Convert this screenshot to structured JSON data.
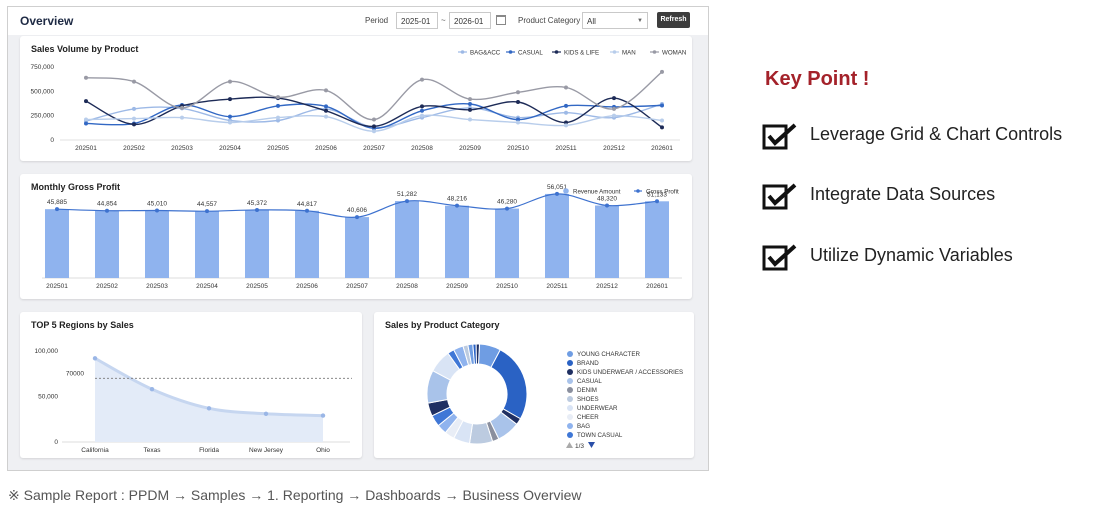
{
  "header": {
    "title": "Overview",
    "period_label": "Period",
    "period_from": "2025-01",
    "period_sep": "~",
    "period_to": "2026-01",
    "category_label": "Product Category",
    "category_value": "All",
    "refresh_label": "Refresh"
  },
  "sales_volume": {
    "title": "Sales Volume by Product",
    "chart_data": {
      "type": "line",
      "categories": [
        "202501",
        "202502",
        "202503",
        "202504",
        "202505",
        "202506",
        "202507",
        "202508",
        "202509",
        "202510",
        "202511",
        "202512",
        "202601"
      ],
      "y_ticks": [
        "750,000",
        "500,000",
        "250,000",
        "0"
      ],
      "ylim": [
        0,
        750000
      ],
      "legend_position": "top-right",
      "series": [
        {
          "name": "BAG&ACC",
          "color": "#9db9e6",
          "values": [
            195000,
            320000,
            325000,
            200000,
            200000,
            320000,
            130000,
            230000,
            330000,
            230000,
            280000,
            230000,
            370000
          ]
        },
        {
          "name": "CASUAL",
          "color": "#3268c4",
          "values": [
            170000,
            170000,
            360000,
            240000,
            350000,
            345000,
            120000,
            300000,
            370000,
            210000,
            350000,
            340000,
            355000
          ]
        },
        {
          "name": "KIDS & LIFE",
          "color": "#1d2b57",
          "values": [
            400000,
            160000,
            350000,
            420000,
            430000,
            300000,
            140000,
            345000,
            310000,
            390000,
            180000,
            430000,
            130000
          ]
        },
        {
          "name": "MAN",
          "color": "#b8cdeb",
          "values": [
            210000,
            220000,
            230000,
            180000,
            230000,
            240000,
            90000,
            250000,
            210000,
            180000,
            150000,
            250000,
            200000
          ]
        },
        {
          "name": "WOMAN",
          "color": "#999aa5",
          "values": [
            640000,
            600000,
            330000,
            600000,
            440000,
            510000,
            210000,
            620000,
            420000,
            490000,
            540000,
            320000,
            700000
          ]
        }
      ]
    }
  },
  "gross_profit": {
    "title": "Monthly Gross Profit",
    "chart_data": {
      "type": "bar",
      "categories": [
        "202501",
        "202502",
        "202503",
        "202504",
        "202505",
        "202506",
        "202507",
        "202508",
        "202509",
        "202510",
        "202511",
        "202512",
        "202601"
      ],
      "legend_position": "top-right",
      "ylim": [
        0,
        60000
      ],
      "series": [
        {
          "name": "Revenue Amount",
          "color": "#8fb3ee",
          "values": [
            45885,
            44854,
            45010,
            44557,
            45372,
            44817,
            40606,
            51282,
            48216,
            46280,
            56051,
            48320,
            51133
          ]
        },
        {
          "name": "Gross Profit",
          "color": "#3e72cf",
          "values": [
            45885,
            44854,
            45010,
            44557,
            45372,
            44817,
            40606,
            51282,
            48216,
            46280,
            56051,
            48320,
            51133
          ]
        }
      ],
      "data_labels": [
        "45,885",
        "44,854",
        "45,010",
        "44,557",
        "45,372",
        "44,817",
        "40,606",
        "51,282",
        "48,216",
        "46,280",
        "56,051",
        "48,320",
        "51,133"
      ]
    }
  },
  "top_regions": {
    "title": "TOP 5 Regions by Sales",
    "chart_data": {
      "type": "area",
      "categories": [
        "California",
        "Texas",
        "Florida",
        "New Jersey",
        "Ohio"
      ],
      "values": [
        92000,
        58000,
        37000,
        31000,
        29000
      ],
      "ylim": [
        0,
        100000
      ],
      "y_ticks": [
        "100,000",
        "50,000",
        "0"
      ],
      "reference_line": {
        "value": 70000,
        "label": "70000"
      }
    }
  },
  "product_category": {
    "title": "Sales by Product Category",
    "chart_data": {
      "type": "pie",
      "legend_position": "right",
      "legend": [
        {
          "name": "YOUNG CHARACTER",
          "color": "#6f9de3"
        },
        {
          "name": "BRAND",
          "color": "#2a62c4"
        },
        {
          "name": "KIDS UNDERWEAR / ACCESSORIES",
          "color": "#1f2f62"
        },
        {
          "name": "CASUAL",
          "color": "#a9c3ea"
        },
        {
          "name": "DENIM",
          "color": "#8a8f9e"
        },
        {
          "name": "SHOES",
          "color": "#bccbe0"
        },
        {
          "name": "UNDERWEAR",
          "color": "#d9e4f5"
        },
        {
          "name": "CHEER",
          "color": "#e8edf6"
        },
        {
          "name": "BAG",
          "color": "#8fb3ee"
        },
        {
          "name": "TOWN CASUAL",
          "color": "#3f77d6"
        }
      ],
      "pager": "1/3",
      "slices": [
        {
          "name": "YOUNG CHARACTER",
          "value": 6.5,
          "color": "#6f9de3"
        },
        {
          "name": "BRAND",
          "value": 24,
          "color": "#2a62c4"
        },
        {
          "name": "KIDS UNDERWEAR / ACCESSORIES",
          "value": 2,
          "color": "#1f2f62"
        },
        {
          "name": "CASUAL",
          "value": 7,
          "color": "#a9c3ea"
        },
        {
          "name": "DENIM",
          "value": 2,
          "color": "#8a8f9e"
        },
        {
          "name": "SHOES",
          "value": 7,
          "color": "#bccbe0"
        },
        {
          "name": "UNDERWEAR",
          "value": 5,
          "color": "#d9e4f5"
        },
        {
          "name": "CHEER",
          "value": 3,
          "color": "#e8edf6"
        },
        {
          "name": "BAG",
          "value": 3,
          "color": "#8fb3ee"
        },
        {
          "name": "TOWN CASUAL",
          "value": 3.5,
          "color": "#3f77d6"
        },
        {
          "name": "",
          "value": 4,
          "color": "#1f2f62"
        },
        {
          "name": "",
          "value": 10,
          "color": "#a9c3ea"
        },
        {
          "name": "",
          "value": 7,
          "color": "#d9e4f5"
        },
        {
          "name": "",
          "value": 2,
          "color": "#3f77d6"
        },
        {
          "name": "",
          "value": 3,
          "color": "#8fb3ee"
        },
        {
          "name": "",
          "value": 1.5,
          "color": "#bccbe0"
        },
        {
          "name": "",
          "value": 1.5,
          "color": "#6f9de3"
        },
        {
          "name": "",
          "value": 1,
          "color": "#2a62c4"
        },
        {
          "name": "",
          "value": 1,
          "color": "#1f2f62"
        }
      ]
    }
  },
  "key_points": {
    "title": "Key Point !",
    "items": [
      "Leverage Grid & Chart Controls",
      "Integrate Data Sources",
      "Utilize Dynamic Variables"
    ],
    "check_icon": "checked-box-icon"
  },
  "footnote": "※ Sample Report : PPDM → Samples → 1. Reporting → Dashboards → Business Overview"
}
